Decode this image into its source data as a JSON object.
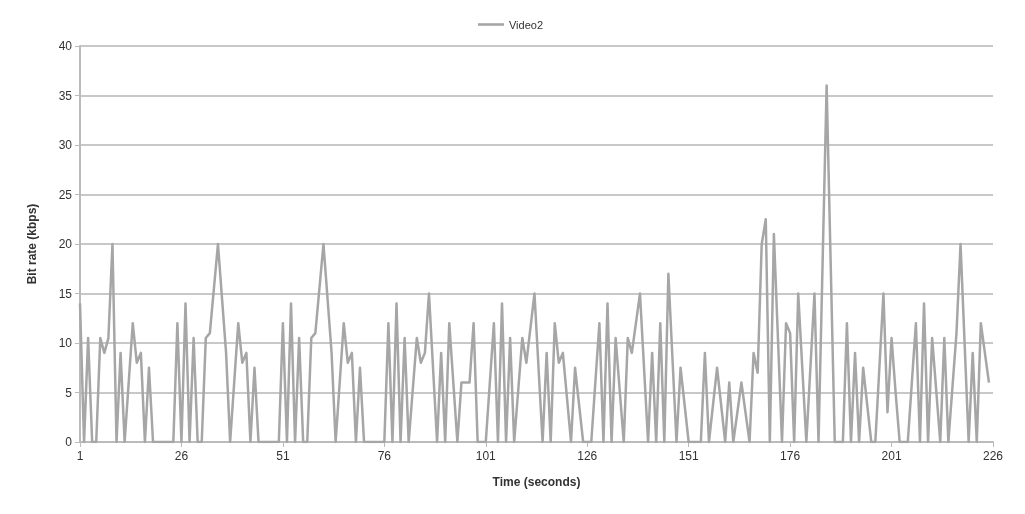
{
  "chart_data": {
    "type": "line",
    "xlabel": "Time (seconds)",
    "ylabel": "Bit rate (kbps)",
    "xlim": [
      1,
      226
    ],
    "xticks": [
      1,
      26,
      51,
      76,
      101,
      126,
      151,
      176,
      201,
      226
    ],
    "ylim": [
      0,
      40
    ],
    "yticks": [
      0,
      5,
      10,
      15,
      20,
      25,
      30,
      35,
      40
    ],
    "grid": "y",
    "legend": "top",
    "marker": "none",
    "line_style": "solid",
    "series": [
      {
        "name": "Video2",
        "color": "#a6a6a6",
        "x": [
          1,
          2,
          3,
          4,
          5,
          6,
          7,
          8,
          9,
          10,
          11,
          12,
          14,
          15,
          16,
          17,
          18,
          19,
          24,
          25,
          26,
          27,
          28,
          29,
          30,
          31,
          32,
          33,
          35,
          37,
          38,
          40,
          41,
          42,
          43,
          44,
          45,
          50,
          51,
          52,
          53,
          54,
          55,
          56,
          57,
          58,
          59,
          61,
          63,
          64,
          66,
          67,
          68,
          69,
          70,
          71,
          76,
          77,
          78,
          79,
          80,
          81,
          82,
          84,
          85,
          86,
          87,
          89,
          90,
          91,
          92,
          94,
          95,
          97,
          98,
          99,
          101,
          103,
          104,
          105,
          106,
          107,
          108,
          110,
          111,
          113,
          115,
          116,
          117,
          118,
          119,
          120,
          122,
          123,
          125,
          127,
          129,
          130,
          131,
          132,
          133,
          135,
          136,
          137,
          139,
          141,
          142,
          143,
          144,
          145,
          146,
          148,
          149,
          151,
          154,
          155,
          156,
          158,
          160,
          161,
          162,
          164,
          166,
          167,
          168,
          169,
          170,
          171,
          172,
          174,
          175,
          176,
          177,
          178,
          180,
          182,
          183,
          185,
          187,
          189,
          190,
          191,
          192,
          193,
          194,
          196,
          197,
          199,
          200,
          201,
          202,
          203,
          205,
          207,
          208,
          209,
          210,
          211,
          213,
          214,
          215,
          217,
          218,
          220,
          221,
          222,
          223,
          225
        ],
        "values": [
          14,
          0,
          10.5,
          0,
          0,
          10.5,
          9,
          10.5,
          20,
          0,
          9,
          0,
          12,
          8,
          9,
          0,
          7.5,
          0,
          0,
          12,
          0,
          14,
          0,
          10.5,
          0,
          0,
          10.5,
          11,
          20,
          9,
          0,
          12,
          8,
          9,
          0,
          7.5,
          0,
          0,
          12,
          0,
          14,
          0,
          10.5,
          0,
          0,
          10.5,
          11,
          20,
          9,
          0,
          12,
          8,
          9,
          0,
          7.5,
          0,
          0,
          12,
          0,
          14,
          0,
          10.5,
          0,
          10.5,
          8,
          9,
          15,
          0,
          9,
          0,
          12,
          0,
          6,
          6,
          12,
          0,
          0,
          12,
          0,
          14,
          0,
          10.5,
          0,
          10.5,
          8,
          15,
          0,
          9,
          0,
          12,
          8,
          9,
          0,
          7.5,
          0,
          0,
          12,
          0,
          14,
          0,
          10.5,
          0,
          10.5,
          9,
          15,
          0,
          9,
          0,
          12,
          0,
          17,
          0,
          7.5,
          0,
          0,
          9,
          0,
          7.5,
          0,
          6,
          0,
          6,
          0,
          9,
          7,
          20,
          22.5,
          0,
          21,
          0,
          12,
          11,
          0,
          15,
          0,
          15,
          0,
          36,
          0,
          0,
          12,
          0,
          9,
          0,
          7.5,
          0,
          0,
          15,
          3,
          10.5,
          5,
          0,
          0,
          12,
          0,
          14,
          0,
          10.5,
          0,
          10.5,
          0,
          11,
          20,
          0,
          9,
          0,
          12,
          6
        ]
      }
    ]
  }
}
